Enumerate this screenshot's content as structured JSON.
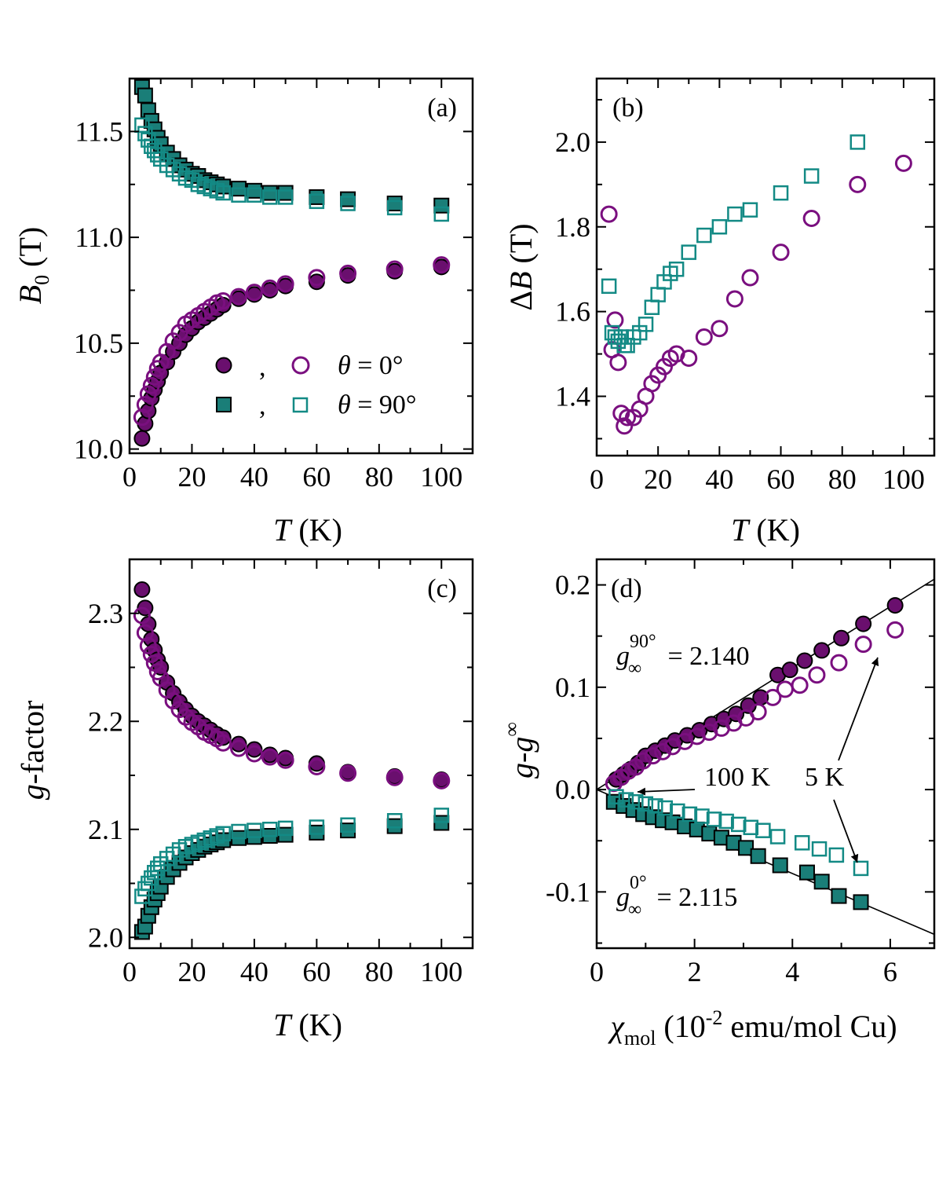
{
  "colors": {
    "purple": "#7a0f7f",
    "teal": "#138a85",
    "filled_purple": "#6a0f6e",
    "filled_teal": "#1a7e78",
    "line": "#000000"
  },
  "legend": {
    "comma": ",",
    "row1_label_theta": "θ",
    "row1_label_rest": " = 0°",
    "row2_label_theta": "θ",
    "row2_label_rest": " = 90°"
  },
  "chart_data": [
    {
      "id": "a",
      "type": "scatter",
      "panel_tag": "(a)",
      "xlabel_italic": "T",
      "xlabel_rest": " (K)",
      "ylabel_italic": "B",
      "ylabel_sub": "0",
      "ylabel_rest": " (T)",
      "xlim": [
        0,
        110
      ],
      "ylim": [
        9.98,
        11.75
      ],
      "xticks": [
        0,
        20,
        40,
        60,
        80,
        100
      ],
      "xtick_labels": [
        "0",
        "20",
        "40",
        "60",
        "80",
        "100"
      ],
      "yticks": [
        10.0,
        10.5,
        11.0,
        11.5
      ],
      "ytick_labels": [
        "10.0",
        "10.5",
        "11.0",
        "11.5"
      ],
      "series": [
        {
          "name": "θ = 0° filled",
          "marker": "circle",
          "filled": true,
          "color": "purple",
          "x": [
            4,
            5,
            6,
            7,
            8,
            9,
            10,
            12,
            14,
            16,
            18,
            20,
            22,
            24,
            26,
            28,
            30,
            35,
            40,
            45,
            50,
            60,
            70,
            85,
            100
          ],
          "y": [
            10.05,
            10.12,
            10.18,
            10.24,
            10.28,
            10.32,
            10.36,
            10.41,
            10.46,
            10.5,
            10.54,
            10.57,
            10.6,
            10.62,
            10.64,
            10.66,
            10.68,
            10.71,
            10.73,
            10.75,
            10.77,
            10.79,
            10.82,
            10.84,
            10.86
          ]
        },
        {
          "name": "θ = 0° open",
          "marker": "circle",
          "filled": false,
          "color": "purple",
          "x": [
            4,
            5,
            6,
            7,
            8,
            9,
            10,
            12,
            14,
            16,
            18,
            20,
            22,
            24,
            26,
            28,
            30,
            35,
            40,
            45,
            50,
            60,
            70,
            85,
            100
          ],
          "y": [
            10.15,
            10.21,
            10.26,
            10.3,
            10.34,
            10.38,
            10.41,
            10.46,
            10.51,
            10.55,
            10.59,
            10.61,
            10.63,
            10.65,
            10.67,
            10.69,
            10.7,
            10.72,
            10.74,
            10.76,
            10.78,
            10.81,
            10.83,
            10.85,
            10.87
          ]
        },
        {
          "name": "θ = 90° filled",
          "marker": "square",
          "filled": true,
          "color": "teal",
          "x": [
            4,
            5,
            6,
            7,
            8,
            9,
            10,
            12,
            14,
            16,
            18,
            20,
            22,
            24,
            26,
            28,
            30,
            35,
            40,
            45,
            50,
            60,
            70,
            85,
            100
          ],
          "y": [
            11.71,
            11.67,
            11.6,
            11.55,
            11.51,
            11.47,
            11.44,
            11.4,
            11.37,
            11.34,
            11.32,
            11.3,
            11.29,
            11.27,
            11.26,
            11.25,
            11.24,
            11.23,
            11.22,
            11.21,
            11.21,
            11.19,
            11.18,
            11.16,
            11.15
          ]
        },
        {
          "name": "θ = 90° open",
          "marker": "square",
          "filled": false,
          "color": "teal",
          "x": [
            4,
            5,
            6,
            7,
            8,
            9,
            10,
            12,
            14,
            16,
            18,
            20,
            22,
            24,
            26,
            28,
            30,
            35,
            40,
            45,
            50,
            60,
            70,
            85,
            100
          ],
          "y": [
            11.53,
            11.49,
            11.46,
            11.43,
            11.41,
            11.39,
            11.37,
            11.34,
            11.32,
            11.3,
            11.28,
            11.27,
            11.25,
            11.24,
            11.23,
            11.22,
            11.21,
            11.2,
            11.2,
            11.19,
            11.19,
            11.17,
            11.16,
            11.14,
            11.11
          ]
        }
      ]
    },
    {
      "id": "b",
      "type": "scatter",
      "panel_tag": "(b)",
      "xlabel_italic": "T",
      "xlabel_rest": " (K)",
      "ylabel_prefix": "Δ",
      "ylabel_italic": "B",
      "ylabel_rest": " (T)",
      "xlim": [
        0,
        110
      ],
      "ylim": [
        1.26,
        2.15
      ],
      "xticks": [
        0,
        20,
        40,
        60,
        80,
        100
      ],
      "xtick_labels": [
        "0",
        "20",
        "40",
        "60",
        "80",
        "100"
      ],
      "yticks": [
        1.4,
        1.6,
        1.8,
        2.0
      ],
      "ytick_labels": [
        "1.4",
        "1.6",
        "1.8",
        "2.0"
      ],
      "series": [
        {
          "name": "θ = 0° open",
          "marker": "circle",
          "filled": false,
          "color": "purple",
          "x": [
            4,
            5,
            6,
            7,
            8,
            9,
            10,
            12,
            14,
            16,
            18,
            20,
            22,
            24,
            26,
            30,
            35,
            40,
            45,
            50,
            60,
            70,
            85,
            100
          ],
          "y": [
            1.83,
            1.51,
            1.58,
            1.48,
            1.36,
            1.33,
            1.35,
            1.35,
            1.37,
            1.4,
            1.43,
            1.45,
            1.47,
            1.49,
            1.5,
            1.49,
            1.54,
            1.56,
            1.63,
            1.68,
            1.74,
            1.82,
            1.9,
            1.95
          ]
        },
        {
          "name": "θ = 90° open",
          "marker": "square",
          "filled": false,
          "color": "teal",
          "x": [
            4,
            5,
            6,
            7,
            8,
            9,
            10,
            12,
            14,
            16,
            18,
            20,
            22,
            24,
            26,
            30,
            35,
            40,
            45,
            50,
            60,
            70,
            85
          ],
          "y": [
            1.66,
            1.55,
            1.54,
            1.53,
            1.54,
            1.52,
            1.52,
            1.54,
            1.55,
            1.57,
            1.61,
            1.64,
            1.67,
            1.69,
            1.7,
            1.74,
            1.78,
            1.8,
            1.83,
            1.84,
            1.88,
            1.92,
            2.0
          ]
        }
      ]
    },
    {
      "id": "c",
      "type": "scatter",
      "panel_tag": "(c)",
      "xlabel_italic": "T",
      "xlabel_rest": " (K)",
      "ylabel_italic": "g",
      "ylabel_rest": "-factor",
      "xlim": [
        0,
        110
      ],
      "ylim": [
        1.99,
        2.35
      ],
      "xticks": [
        0,
        20,
        40,
        60,
        80,
        100
      ],
      "xtick_labels": [
        "0",
        "20",
        "40",
        "60",
        "80",
        "100"
      ],
      "yticks": [
        2.0,
        2.1,
        2.2,
        2.3
      ],
      "ytick_labels": [
        "2.0",
        "2.1",
        "2.2",
        "2.3"
      ],
      "series": [
        {
          "name": "θ = 0° filled",
          "marker": "circle",
          "filled": true,
          "color": "purple",
          "x": [
            4,
            5,
            6,
            7,
            8,
            9,
            10,
            12,
            14,
            16,
            18,
            20,
            22,
            24,
            26,
            28,
            30,
            35,
            40,
            45,
            50,
            60,
            70,
            85,
            100
          ],
          "y": [
            2.322,
            2.305,
            2.29,
            2.276,
            2.266,
            2.257,
            2.25,
            2.236,
            2.226,
            2.218,
            2.211,
            2.205,
            2.2,
            2.196,
            2.192,
            2.188,
            2.185,
            2.179,
            2.174,
            2.169,
            2.166,
            2.161,
            2.153,
            2.149,
            2.146
          ]
        },
        {
          "name": "θ = 0° open",
          "marker": "circle",
          "filled": false,
          "color": "purple",
          "x": [
            4,
            5,
            6,
            7,
            8,
            9,
            10,
            12,
            14,
            16,
            18,
            20,
            22,
            24,
            26,
            28,
            30,
            35,
            40,
            45,
            50,
            60,
            70,
            85,
            100
          ],
          "y": [
            2.298,
            2.282,
            2.27,
            2.262,
            2.254,
            2.246,
            2.24,
            2.229,
            2.219,
            2.211,
            2.204,
            2.199,
            2.195,
            2.19,
            2.187,
            2.184,
            2.18,
            2.175,
            2.17,
            2.167,
            2.164,
            2.158,
            2.152,
            2.148,
            2.145
          ]
        },
        {
          "name": "θ = 90° filled",
          "marker": "square",
          "filled": true,
          "color": "teal",
          "x": [
            4,
            5,
            6,
            7,
            8,
            9,
            10,
            12,
            14,
            16,
            18,
            20,
            22,
            24,
            26,
            28,
            30,
            35,
            40,
            45,
            50,
            60,
            70,
            85,
            100
          ],
          "y": [
            2.005,
            2.01,
            2.02,
            2.028,
            2.035,
            2.041,
            2.047,
            2.056,
            2.063,
            2.069,
            2.074,
            2.078,
            2.081,
            2.084,
            2.086,
            2.088,
            2.09,
            2.092,
            2.093,
            2.094,
            2.095,
            2.097,
            2.099,
            2.103,
            2.106
          ]
        },
        {
          "name": "θ = 90° open",
          "marker": "square",
          "filled": false,
          "color": "teal",
          "x": [
            4,
            5,
            6,
            7,
            8,
            9,
            10,
            12,
            14,
            16,
            18,
            20,
            22,
            24,
            26,
            28,
            30,
            35,
            40,
            45,
            50,
            60,
            70,
            85,
            100
          ],
          "y": [
            2.038,
            2.045,
            2.05,
            2.055,
            2.06,
            2.064,
            2.068,
            2.073,
            2.077,
            2.081,
            2.084,
            2.086,
            2.088,
            2.09,
            2.092,
            2.094,
            2.096,
            2.098,
            2.099,
            2.1,
            2.101,
            2.102,
            2.104,
            2.108,
            2.113
          ]
        }
      ]
    },
    {
      "id": "d",
      "type": "scatter",
      "panel_tag": "(d)",
      "xlabel_symbol": "χ",
      "xlabel_sub": "mol",
      "xlabel_rest_1": " (10",
      "xlabel_sup": "-2",
      "xlabel_rest_2": " emu/mol Cu)",
      "ylabel_italic_1": "g",
      "ylabel_dash": "-",
      "ylabel_italic_2": "g",
      "ylabel_sub": "∞",
      "xlim": [
        0,
        6.9
      ],
      "ylim": [
        -0.155,
        0.225
      ],
      "xticks": [
        0,
        2,
        4,
        6
      ],
      "xtick_labels": [
        "0",
        "2",
        "4",
        "6"
      ],
      "yticks": [
        -0.1,
        0.0,
        0.1,
        0.2
      ],
      "ytick_labels": [
        "-0.1",
        "0.0",
        "0.1",
        "0.2"
      ],
      "fit_lines": [
        {
          "name": "fit 90°",
          "slope": 0.0298,
          "intercept": 0.0,
          "x_range": [
            0,
            6.9
          ]
        },
        {
          "name": "fit 0°",
          "slope": -0.0205,
          "intercept": 0.0,
          "x_range": [
            0,
            6.9
          ]
        }
      ],
      "series": [
        {
          "name": "90° filled",
          "marker": "circle",
          "filled": true,
          "color": "purple",
          "x": [
            0.4,
            0.55,
            0.7,
            0.85,
            1.0,
            1.2,
            1.4,
            1.6,
            1.85,
            2.1,
            2.35,
            2.6,
            2.85,
            3.1,
            3.35,
            3.7,
            3.95,
            4.25,
            4.6,
            5.0,
            5.45,
            6.1
          ],
          "y": [
            0.01,
            0.015,
            0.02,
            0.026,
            0.033,
            0.038,
            0.043,
            0.048,
            0.053,
            0.058,
            0.064,
            0.069,
            0.074,
            0.082,
            0.09,
            0.112,
            0.117,
            0.126,
            0.136,
            0.148,
            0.162,
            0.18
          ]
        },
        {
          "name": "90° open",
          "marker": "circle",
          "filled": false,
          "color": "purple",
          "x": [
            0.35,
            0.5,
            0.65,
            0.8,
            0.95,
            1.15,
            1.35,
            1.55,
            1.8,
            2.05,
            2.3,
            2.55,
            2.8,
            3.05,
            3.3,
            3.6,
            3.85,
            4.15,
            4.5,
            4.95,
            5.45,
            6.1
          ],
          "y": [
            0.006,
            0.012,
            0.018,
            0.022,
            0.028,
            0.033,
            0.037,
            0.042,
            0.047,
            0.052,
            0.056,
            0.06,
            0.065,
            0.07,
            0.076,
            0.09,
            0.098,
            0.102,
            0.112,
            0.124,
            0.142,
            0.156
          ]
        },
        {
          "name": "0° filled",
          "marker": "square",
          "filled": true,
          "color": "teal",
          "x": [
            0.35,
            0.55,
            0.75,
            0.95,
            1.15,
            1.35,
            1.55,
            1.8,
            2.05,
            2.3,
            2.55,
            2.8,
            3.05,
            3.3,
            3.75,
            4.3,
            4.6,
            4.95,
            5.4
          ],
          "y": [
            -0.012,
            -0.016,
            -0.02,
            -0.024,
            -0.027,
            -0.03,
            -0.032,
            -0.036,
            -0.039,
            -0.043,
            -0.047,
            -0.052,
            -0.057,
            -0.065,
            -0.074,
            -0.081,
            -0.09,
            -0.104,
            -0.11
          ]
        },
        {
          "name": "0° open",
          "marker": "square",
          "filled": false,
          "color": "teal",
          "x": [
            0.4,
            0.6,
            0.8,
            1.0,
            1.2,
            1.4,
            1.65,
            1.9,
            2.15,
            2.4,
            2.65,
            2.9,
            3.15,
            3.4,
            3.7,
            4.2,
            4.55,
            4.9,
            5.4
          ],
          "y": [
            -0.007,
            -0.01,
            -0.012,
            -0.014,
            -0.016,
            -0.018,
            -0.021,
            -0.024,
            -0.026,
            -0.029,
            -0.031,
            -0.034,
            -0.037,
            -0.04,
            -0.046,
            -0.052,
            -0.058,
            -0.064,
            -0.077
          ]
        }
      ],
      "annotations": {
        "g90_symbol": "g",
        "g90_sup": "90°",
        "g90_sub": "∞",
        "g90_value": " = 2.140",
        "g0_symbol": "g",
        "g0_sup": "0°",
        "g0_sub": "∞",
        "g0_value": " = 2.115",
        "label_100K": "100 K",
        "label_5K": "5 K"
      }
    }
  ]
}
